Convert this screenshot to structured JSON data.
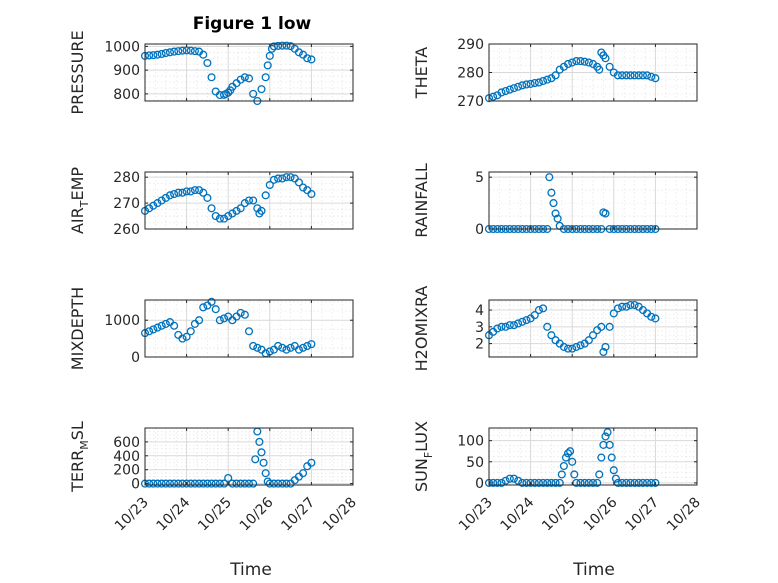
{
  "title": "Figure 1 low",
  "marker_color": "#0072BD",
  "chart_data": [
    {
      "type": "scatter",
      "ylabel": "PRESSURE",
      "xlim": [
        0,
        5
      ],
      "ylim": [
        770,
        1010
      ],
      "yticks": [
        800,
        900,
        1000
      ],
      "grid": true,
      "title": "Figure 1 low",
      "x": [
        0.0,
        0.1,
        0.2,
        0.3,
        0.4,
        0.5,
        0.6,
        0.7,
        0.8,
        0.9,
        1.0,
        1.1,
        1.2,
        1.3,
        1.4,
        1.5,
        1.6,
        1.7,
        1.8,
        1.9,
        1.95,
        2.0,
        2.05,
        2.1,
        2.2,
        2.3,
        2.4,
        2.5,
        2.6,
        2.7,
        2.8,
        2.9,
        2.95,
        3.0,
        3.05,
        3.1,
        3.2,
        3.3,
        3.4,
        3.5,
        3.6,
        3.7,
        3.8,
        3.9,
        4.0
      ],
      "y": [
        960,
        962,
        963,
        965,
        968,
        972,
        975,
        978,
        980,
        982,
        983,
        982,
        980,
        978,
        965,
        930,
        870,
        810,
        795,
        796,
        800,
        805,
        815,
        830,
        845,
        860,
        870,
        865,
        800,
        770,
        820,
        870,
        920,
        960,
        990,
        1000,
        1002,
        1003,
        1003,
        1001,
        990,
        975,
        965,
        950,
        945
      ]
    },
    {
      "type": "scatter",
      "ylabel": "THETA",
      "xlim": [
        0,
        5
      ],
      "ylim": [
        270,
        290
      ],
      "yticks": [
        270,
        280,
        290
      ],
      "grid": true,
      "x": [
        0.0,
        0.1,
        0.2,
        0.3,
        0.4,
        0.5,
        0.6,
        0.7,
        0.8,
        0.9,
        1.0,
        1.1,
        1.2,
        1.3,
        1.4,
        1.5,
        1.6,
        1.7,
        1.8,
        1.9,
        2.0,
        2.1,
        2.2,
        2.3,
        2.4,
        2.5,
        2.6,
        2.65,
        2.7,
        2.75,
        2.8,
        2.9,
        3.0,
        3.1,
        3.2,
        3.3,
        3.4,
        3.5,
        3.6,
        3.7,
        3.8,
        3.9,
        4.0
      ],
      "y": [
        271,
        271.5,
        272,
        273,
        273.5,
        274,
        274.5,
        275,
        275.5,
        275.8,
        276,
        276.3,
        276.5,
        277,
        277.5,
        278,
        279,
        281,
        282,
        283,
        283.5,
        284,
        284,
        283.8,
        283.5,
        283,
        282,
        281,
        287,
        286,
        285,
        282,
        280,
        279,
        279,
        279,
        279,
        279,
        279,
        279,
        279,
        278.5,
        278
      ]
    },
    {
      "type": "scatter",
      "ylabel": "AIR_TEMP",
      "xlim": [
        0,
        5
      ],
      "ylim": [
        260,
        282
      ],
      "yticks": [
        260,
        270,
        280
      ],
      "grid": true,
      "x": [
        0.0,
        0.1,
        0.2,
        0.3,
        0.4,
        0.5,
        0.6,
        0.7,
        0.8,
        0.9,
        1.0,
        1.1,
        1.2,
        1.3,
        1.4,
        1.5,
        1.6,
        1.7,
        1.8,
        1.9,
        2.0,
        2.1,
        2.2,
        2.3,
        2.4,
        2.5,
        2.6,
        2.7,
        2.75,
        2.8,
        2.9,
        3.0,
        3.1,
        3.2,
        3.3,
        3.4,
        3.5,
        3.6,
        3.7,
        3.8,
        3.9,
        4.0
      ],
      "y": [
        267,
        268,
        269,
        270,
        271,
        272,
        273,
        273.5,
        274,
        274,
        274.5,
        274.5,
        275,
        275,
        274,
        272,
        268,
        265,
        264,
        264,
        265,
        266,
        267,
        268,
        270,
        271,
        271,
        268,
        266,
        267,
        273,
        277,
        279,
        279.5,
        279.5,
        280,
        280,
        279.5,
        278,
        276,
        275,
        273.5
      ]
    },
    {
      "type": "scatter",
      "ylabel": "RAINFALL",
      "xlim": [
        0,
        5
      ],
      "ylim": [
        0,
        5.5
      ],
      "yticks": [
        0,
        5
      ],
      "grid": true,
      "x": [
        0.0,
        0.1,
        0.2,
        0.3,
        0.4,
        0.5,
        0.6,
        0.7,
        0.8,
        0.9,
        1.0,
        1.1,
        1.2,
        1.3,
        1.4,
        1.45,
        1.5,
        1.55,
        1.6,
        1.65,
        1.7,
        1.8,
        1.9,
        2.0,
        2.1,
        2.2,
        2.3,
        2.4,
        2.5,
        2.6,
        2.7,
        2.75,
        2.8,
        2.9,
        3.0,
        3.1,
        3.2,
        3.3,
        3.4,
        3.5,
        3.6,
        3.7,
        3.8,
        3.9,
        4.0
      ],
      "y": [
        0,
        0,
        0,
        0,
        0,
        0,
        0,
        0,
        0,
        0,
        0,
        0,
        0,
        0,
        0,
        5,
        3.5,
        2.5,
        1.5,
        1,
        0.3,
        0,
        0,
        0,
        0,
        0,
        0,
        0,
        0,
        0,
        0,
        1.6,
        1.5,
        0,
        0,
        0,
        0,
        0,
        0,
        0,
        0,
        0,
        0,
        0,
        0
      ]
    },
    {
      "type": "scatter",
      "ylabel": "MIXDEPTH",
      "xlim": [
        0,
        5
      ],
      "ylim": [
        0,
        1550
      ],
      "yticks": [
        0,
        1000
      ],
      "grid": true,
      "x": [
        0.0,
        0.1,
        0.2,
        0.3,
        0.4,
        0.5,
        0.6,
        0.7,
        0.8,
        0.9,
        1.0,
        1.1,
        1.2,
        1.3,
        1.4,
        1.5,
        1.6,
        1.7,
        1.8,
        1.9,
        2.0,
        2.1,
        2.2,
        2.3,
        2.4,
        2.5,
        2.6,
        2.7,
        2.8,
        2.9,
        3.0,
        3.1,
        3.2,
        3.3,
        3.4,
        3.5,
        3.6,
        3.7,
        3.8,
        3.9,
        4.0
      ],
      "y": [
        650,
        700,
        750,
        800,
        850,
        900,
        950,
        850,
        600,
        500,
        550,
        700,
        900,
        1000,
        1350,
        1400,
        1500,
        1300,
        1000,
        1050,
        1100,
        1000,
        1100,
        1200,
        1150,
        700,
        300,
        250,
        200,
        100,
        150,
        200,
        300,
        250,
        200,
        250,
        300,
        200,
        250,
        300,
        350
      ]
    },
    {
      "type": "scatter",
      "ylabel": "H2OMIXRA",
      "xlim": [
        0,
        5
      ],
      "ylim": [
        1.2,
        4.6
      ],
      "yticks": [
        2,
        3,
        4
      ],
      "grid": true,
      "x": [
        0.0,
        0.1,
        0.2,
        0.3,
        0.4,
        0.5,
        0.6,
        0.7,
        0.8,
        0.9,
        1.0,
        1.1,
        1.2,
        1.3,
        1.4,
        1.5,
        1.6,
        1.7,
        1.8,
        1.9,
        2.0,
        2.1,
        2.2,
        2.3,
        2.4,
        2.5,
        2.6,
        2.7,
        2.75,
        2.8,
        2.9,
        3.0,
        3.1,
        3.2,
        3.3,
        3.4,
        3.5,
        3.6,
        3.7,
        3.8,
        3.9,
        4.0
      ],
      "y": [
        2.5,
        2.7,
        2.9,
        3.0,
        3.0,
        3.1,
        3.1,
        3.2,
        3.3,
        3.4,
        3.5,
        3.7,
        4.0,
        4.1,
        3.0,
        2.5,
        2.2,
        2.0,
        1.8,
        1.7,
        1.7,
        1.8,
        1.9,
        2.0,
        2.2,
        2.5,
        2.8,
        3.0,
        1.5,
        1.8,
        3.0,
        3.8,
        4.1,
        4.2,
        4.2,
        4.3,
        4.3,
        4.2,
        4.0,
        3.8,
        3.6,
        3.5
      ]
    },
    {
      "type": "scatter",
      "ylabel": "TERR_MSL",
      "xlim": [
        0,
        5
      ],
      "ylim": [
        -20,
        800
      ],
      "yticks": [
        0,
        200,
        400,
        600
      ],
      "grid": true,
      "x": [
        0.0,
        0.1,
        0.2,
        0.3,
        0.4,
        0.5,
        0.6,
        0.7,
        0.8,
        0.9,
        1.0,
        1.1,
        1.2,
        1.3,
        1.4,
        1.5,
        1.6,
        1.7,
        1.8,
        1.9,
        2.0,
        2.1,
        2.2,
        2.3,
        2.4,
        2.5,
        2.6,
        2.65,
        2.7,
        2.75,
        2.8,
        2.85,
        2.9,
        2.95,
        3.0,
        3.1,
        3.2,
        3.3,
        3.4,
        3.5,
        3.6,
        3.7,
        3.8,
        3.9,
        4.0
      ],
      "y": [
        0,
        0,
        0,
        0,
        0,
        0,
        0,
        0,
        0,
        0,
        0,
        0,
        0,
        0,
        0,
        0,
        0,
        0,
        0,
        0,
        80,
        0,
        0,
        0,
        0,
        0,
        0,
        350,
        750,
        600,
        450,
        300,
        150,
        30,
        0,
        0,
        0,
        0,
        0,
        0,
        50,
        100,
        150,
        250,
        300
      ]
    },
    {
      "type": "scatter",
      "ylabel": "SUN_FLUX",
      "xlim": [
        0,
        5
      ],
      "ylim": [
        -5,
        130
      ],
      "yticks": [
        0,
        50,
        100
      ],
      "grid": true,
      "x": [
        0.0,
        0.1,
        0.2,
        0.3,
        0.4,
        0.5,
        0.6,
        0.7,
        0.8,
        0.9,
        1.0,
        1.1,
        1.2,
        1.3,
        1.4,
        1.5,
        1.6,
        1.7,
        1.75,
        1.8,
        1.85,
        1.9,
        1.95,
        2.0,
        2.05,
        2.1,
        2.2,
        2.3,
        2.4,
        2.5,
        2.6,
        2.65,
        2.7,
        2.75,
        2.8,
        2.85,
        2.9,
        2.95,
        3.0,
        3.05,
        3.1,
        3.2,
        3.3,
        3.4,
        3.5,
        3.6,
        3.7,
        3.8,
        3.9,
        4.0
      ],
      "y": [
        0,
        0,
        0,
        0,
        5,
        10,
        10,
        5,
        0,
        0,
        0,
        0,
        0,
        0,
        0,
        0,
        0,
        0,
        20,
        40,
        60,
        70,
        75,
        50,
        20,
        0,
        0,
        0,
        0,
        0,
        0,
        20,
        60,
        90,
        110,
        120,
        90,
        60,
        30,
        10,
        0,
        0,
        0,
        0,
        0,
        0,
        0,
        0,
        0,
        0
      ]
    }
  ],
  "x_tick_labels": [
    "10/23",
    "10/24",
    "10/25",
    "10/26",
    "10/27",
    "10/28"
  ],
  "xlabel": "Time"
}
